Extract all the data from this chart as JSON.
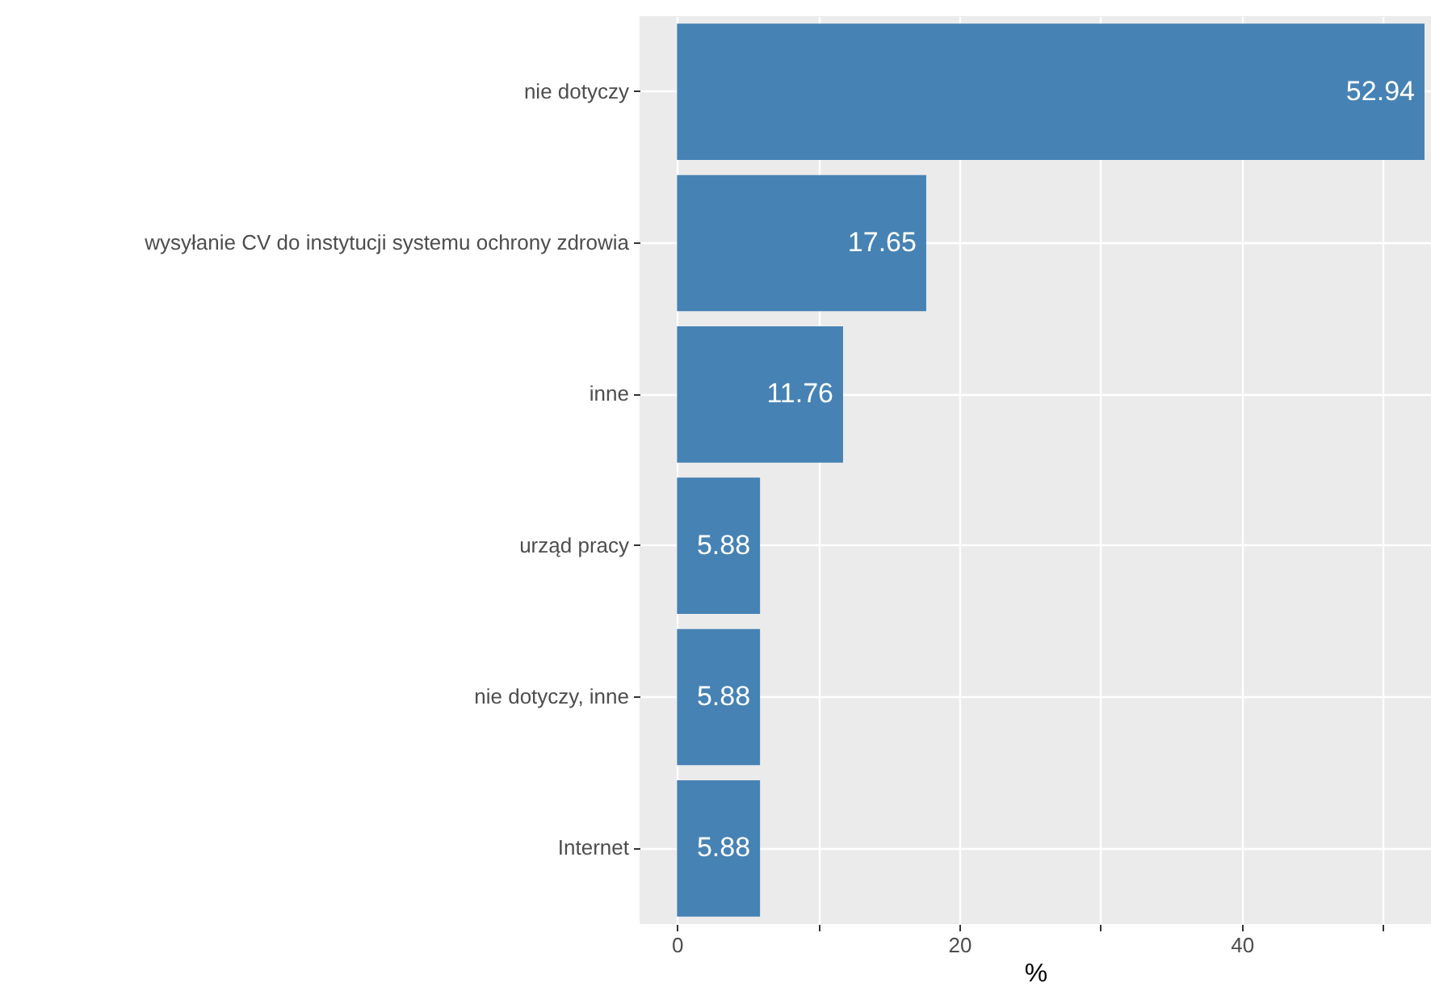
{
  "chart_data": {
    "type": "bar",
    "orientation": "horizontal",
    "xlabel": "%",
    "categories": [
      "nie dotyczy",
      "wysyłanie CV do instytucji systemu ochrony zdrowia",
      "inne",
      "urząd pracy",
      "nie dotyczy, inne",
      "Internet"
    ],
    "values": [
      52.94,
      17.65,
      11.76,
      5.88,
      5.88,
      5.88
    ],
    "color": "#4682b4",
    "xlim": [
      -2.65,
      53.4
    ],
    "xticks": [
      0,
      {
        "value": 10,
        "label": null
      },
      20,
      {
        "value": 30,
        "label": null
      },
      40,
      {
        "value": 50,
        "label": null
      }
    ],
    "grid": true,
    "data_labels": true
  }
}
